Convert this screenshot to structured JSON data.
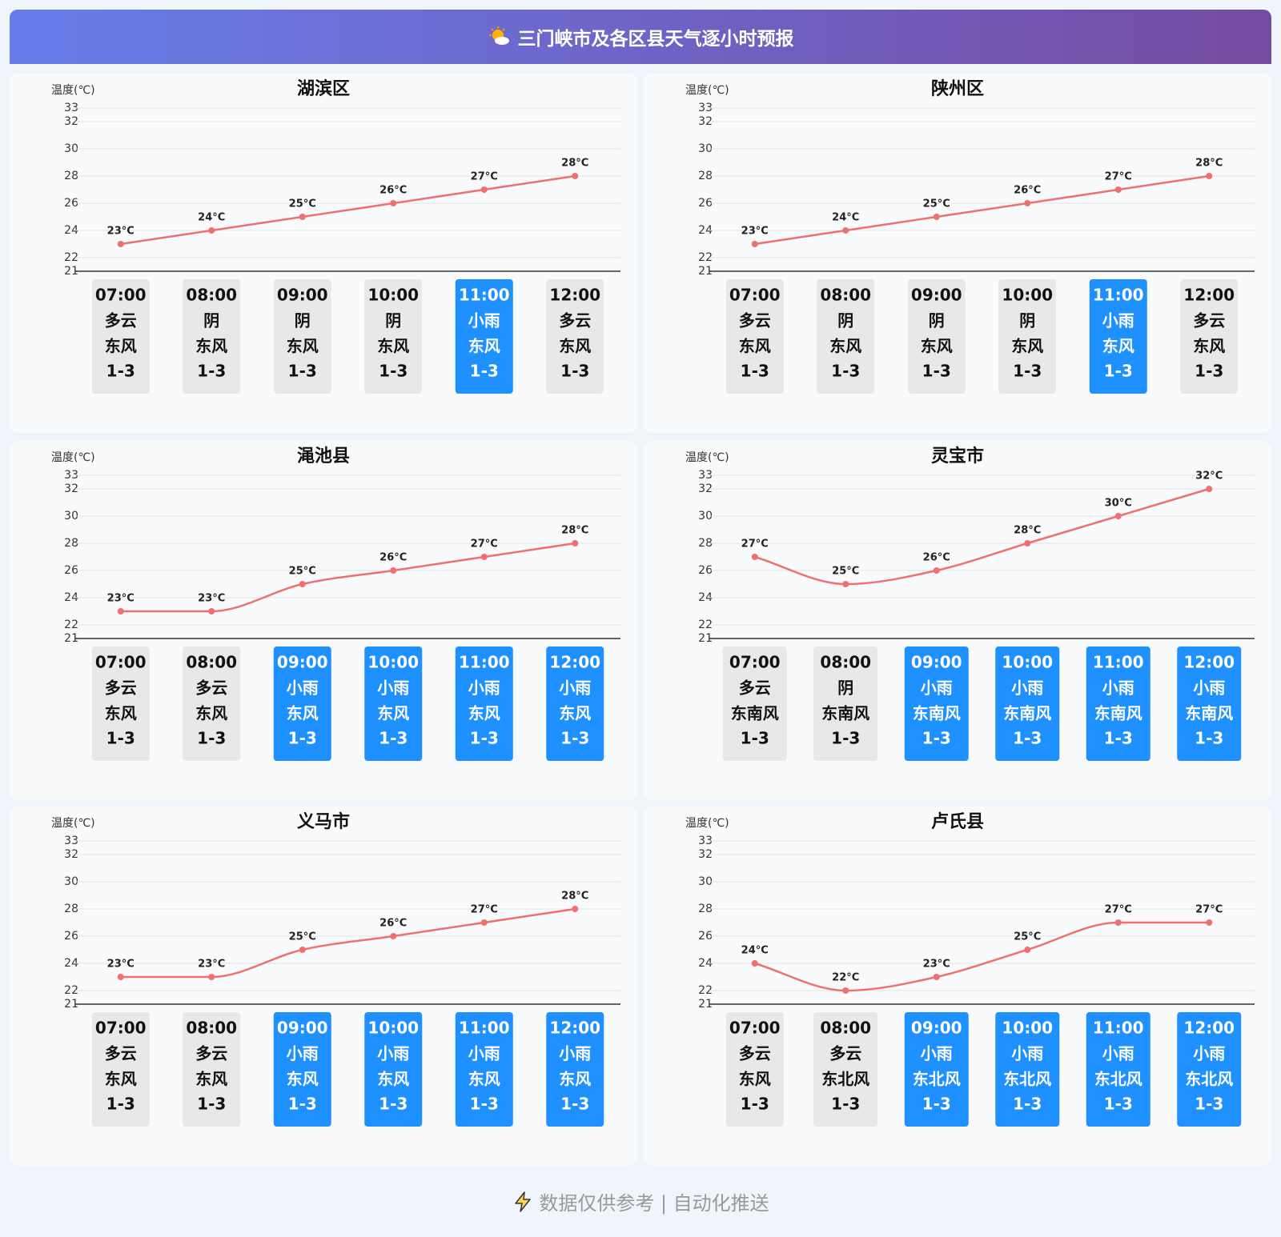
{
  "header": {
    "title": "三门峡市及各区县天气逐小时预报"
  },
  "chart_data": [
    {
      "type": "line",
      "title": "湖滨区",
      "y_label": "温度(℃)",
      "categories": [
        "07:00",
        "08:00",
        "09:00",
        "10:00",
        "11:00",
        "12:00"
      ],
      "values": [
        23,
        24,
        25,
        26,
        27,
        28
      ],
      "value_labels": [
        "23°C",
        "24°C",
        "25°C",
        "26°C",
        "27°C",
        "28°C"
      ],
      "color": "#f07070",
      "ylim": [
        21,
        33
      ],
      "yticks": [
        21,
        22,
        24,
        26,
        28,
        30,
        32,
        33
      ],
      "grid": true,
      "smooth": true,
      "weather": [
        "多云",
        "阴",
        "阴",
        "阴",
        "小雨",
        "多云"
      ],
      "wind": [
        "东风",
        "东风",
        "东风",
        "东风",
        "东风",
        "东风"
      ],
      "level": [
        "1-3",
        "1-3",
        "1-3",
        "1-3",
        "1-3",
        "1-3"
      ],
      "card_colors": [
        "#e8e8e8",
        "#e8e8e8",
        "#e8e8e8",
        "#e8e8e8",
        "#1e90ff",
        "#e8e8e8"
      ],
      "card_text_colors": [
        "#111111",
        "#111111",
        "#111111",
        "#111111",
        "#ffffff",
        "#111111"
      ]
    },
    {
      "type": "line",
      "title": "陕州区",
      "y_label": "温度(℃)",
      "categories": [
        "07:00",
        "08:00",
        "09:00",
        "10:00",
        "11:00",
        "12:00"
      ],
      "values": [
        23,
        24,
        25,
        26,
        27,
        28
      ],
      "value_labels": [
        "23°C",
        "24°C",
        "25°C",
        "26°C",
        "27°C",
        "28°C"
      ],
      "color": "#f07070",
      "ylim": [
        21,
        33
      ],
      "yticks": [
        21,
        22,
        24,
        26,
        28,
        30,
        32,
        33
      ],
      "grid": true,
      "smooth": true,
      "weather": [
        "多云",
        "阴",
        "阴",
        "阴",
        "小雨",
        "多云"
      ],
      "wind": [
        "东风",
        "东风",
        "东风",
        "东风",
        "东风",
        "东风"
      ],
      "level": [
        "1-3",
        "1-3",
        "1-3",
        "1-3",
        "1-3",
        "1-3"
      ],
      "card_colors": [
        "#e8e8e8",
        "#e8e8e8",
        "#e8e8e8",
        "#e8e8e8",
        "#1e90ff",
        "#e8e8e8"
      ],
      "card_text_colors": [
        "#111111",
        "#111111",
        "#111111",
        "#111111",
        "#ffffff",
        "#111111"
      ]
    },
    {
      "type": "line",
      "title": "渑池县",
      "y_label": "温度(℃)",
      "categories": [
        "07:00",
        "08:00",
        "09:00",
        "10:00",
        "11:00",
        "12:00"
      ],
      "values": [
        23,
        23,
        25,
        26,
        27,
        28
      ],
      "value_labels": [
        "23°C",
        "23°C",
        "25°C",
        "26°C",
        "27°C",
        "28°C"
      ],
      "color": "#f07070",
      "ylim": [
        21,
        33
      ],
      "yticks": [
        21,
        22,
        24,
        26,
        28,
        30,
        32,
        33
      ],
      "grid": true,
      "smooth": true,
      "weather": [
        "多云",
        "多云",
        "小雨",
        "小雨",
        "小雨",
        "小雨"
      ],
      "wind": [
        "东风",
        "东风",
        "东风",
        "东风",
        "东风",
        "东风"
      ],
      "level": [
        "1-3",
        "1-3",
        "1-3",
        "1-3",
        "1-3",
        "1-3"
      ],
      "card_colors": [
        "#e8e8e8",
        "#e8e8e8",
        "#1e90ff",
        "#1e90ff",
        "#1e90ff",
        "#1e90ff"
      ],
      "card_text_colors": [
        "#111111",
        "#111111",
        "#ffffff",
        "#ffffff",
        "#ffffff",
        "#ffffff"
      ]
    },
    {
      "type": "line",
      "title": "灵宝市",
      "y_label": "温度(℃)",
      "categories": [
        "07:00",
        "08:00",
        "09:00",
        "10:00",
        "11:00",
        "12:00"
      ],
      "values": [
        27,
        25,
        26,
        28,
        30,
        32
      ],
      "value_labels": [
        "27°C",
        "25°C",
        "26°C",
        "28°C",
        "30°C",
        "32°C"
      ],
      "color": "#f07070",
      "ylim": [
        21,
        33
      ],
      "yticks": [
        21,
        22,
        24,
        26,
        28,
        30,
        32,
        33
      ],
      "grid": true,
      "smooth": true,
      "weather": [
        "多云",
        "阴",
        "小雨",
        "小雨",
        "小雨",
        "小雨"
      ],
      "wind": [
        "东南风",
        "东南风",
        "东南风",
        "东南风",
        "东南风",
        "东南风"
      ],
      "level": [
        "1-3",
        "1-3",
        "1-3",
        "1-3",
        "1-3",
        "1-3"
      ],
      "card_colors": [
        "#e8e8e8",
        "#e8e8e8",
        "#1e90ff",
        "#1e90ff",
        "#1e90ff",
        "#1e90ff"
      ],
      "card_text_colors": [
        "#111111",
        "#111111",
        "#ffffff",
        "#ffffff",
        "#ffffff",
        "#ffffff"
      ]
    },
    {
      "type": "line",
      "title": "义马市",
      "y_label": "温度(℃)",
      "categories": [
        "07:00",
        "08:00",
        "09:00",
        "10:00",
        "11:00",
        "12:00"
      ],
      "values": [
        23,
        23,
        25,
        26,
        27,
        28
      ],
      "value_labels": [
        "23°C",
        "23°C",
        "25°C",
        "26°C",
        "27°C",
        "28°C"
      ],
      "color": "#f07070",
      "ylim": [
        21,
        33
      ],
      "yticks": [
        21,
        22,
        24,
        26,
        28,
        30,
        32,
        33
      ],
      "grid": true,
      "smooth": true,
      "weather": [
        "多云",
        "多云",
        "小雨",
        "小雨",
        "小雨",
        "小雨"
      ],
      "wind": [
        "东风",
        "东风",
        "东风",
        "东风",
        "东风",
        "东风"
      ],
      "level": [
        "1-3",
        "1-3",
        "1-3",
        "1-3",
        "1-3",
        "1-3"
      ],
      "card_colors": [
        "#e8e8e8",
        "#e8e8e8",
        "#1e90ff",
        "#1e90ff",
        "#1e90ff",
        "#1e90ff"
      ],
      "card_text_colors": [
        "#111111",
        "#111111",
        "#ffffff",
        "#ffffff",
        "#ffffff",
        "#ffffff"
      ]
    },
    {
      "type": "line",
      "title": "卢氏县",
      "y_label": "温度(℃)",
      "categories": [
        "07:00",
        "08:00",
        "09:00",
        "10:00",
        "11:00",
        "12:00"
      ],
      "values": [
        24,
        22,
        23,
        25,
        27,
        27
      ],
      "value_labels": [
        "24°C",
        "22°C",
        "23°C",
        "25°C",
        "27°C",
        "27°C"
      ],
      "color": "#f07070",
      "ylim": [
        21,
        33
      ],
      "yticks": [
        21,
        22,
        24,
        26,
        28,
        30,
        32,
        33
      ],
      "grid": true,
      "smooth": true,
      "weather": [
        "多云",
        "多云",
        "小雨",
        "小雨",
        "小雨",
        "小雨"
      ],
      "wind": [
        "东风",
        "东北风",
        "东北风",
        "东北风",
        "东北风",
        "东北风"
      ],
      "level": [
        "1-3",
        "1-3",
        "1-3",
        "1-3",
        "1-3",
        "1-3"
      ],
      "card_colors": [
        "#e8e8e8",
        "#e8e8e8",
        "#1e90ff",
        "#1e90ff",
        "#1e90ff",
        "#1e90ff"
      ],
      "card_text_colors": [
        "#111111",
        "#111111",
        "#ffffff",
        "#ffffff",
        "#ffffff",
        "#ffffff"
      ]
    }
  ],
  "footer": {
    "text": "数据仅供参考 | 自动化推送"
  }
}
